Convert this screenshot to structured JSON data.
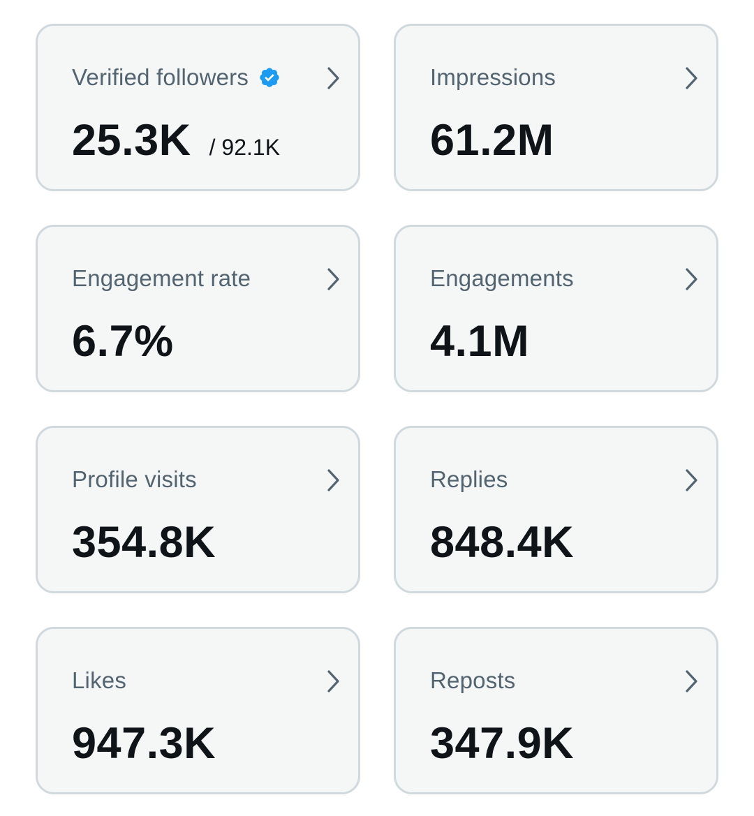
{
  "colors": {
    "card_background": "#f5f7f7",
    "card_border": "#cfd9de",
    "label_text": "#536471",
    "value_text": "#0f1419",
    "verified_badge": "#1d9bf0"
  },
  "metrics": [
    {
      "label": "Verified followers",
      "value": "25.3K",
      "sub_value": "/ 92.1K",
      "icon": "verified-badge-icon"
    },
    {
      "label": "Impressions",
      "value": "61.2M"
    },
    {
      "label": "Engagement rate",
      "value": "6.7%"
    },
    {
      "label": "Engagements",
      "value": "4.1M"
    },
    {
      "label": "Profile visits",
      "value": "354.8K"
    },
    {
      "label": "Replies",
      "value": "848.4K"
    },
    {
      "label": "Likes",
      "value": "947.3K"
    },
    {
      "label": "Reposts",
      "value": "347.9K"
    }
  ],
  "card_action_icon": "chevron-right-icon"
}
